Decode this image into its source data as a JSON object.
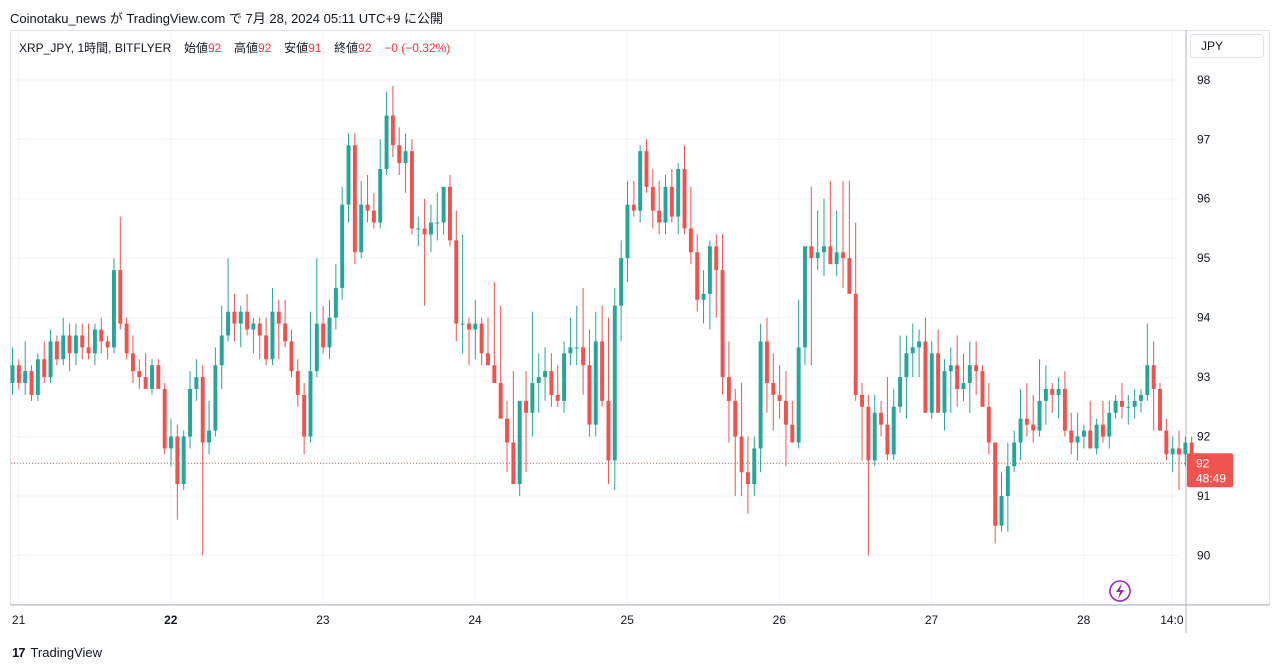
{
  "header": {
    "publish_info": "Coinotaku_news が TradingView.com で 7月 28, 2024 05:11 UTC+9 に公開"
  },
  "legend": {
    "symbol": "XRP_JPY, 1時間, BITFLYER",
    "open_label": "始値",
    "open_value": "92",
    "high_label": "高値",
    "high_value": "92",
    "low_label": "安値",
    "low_value": "91",
    "close_label": "終値",
    "close_value": "92",
    "change": "−0 (−0.32%)"
  },
  "currency_button": "JPY",
  "price_tag": {
    "price": "92",
    "countdown": "48:49"
  },
  "footer": {
    "brand": "TradingView",
    "logo": "17"
  },
  "colors": {
    "up": "#26a69a",
    "down": "#ef5350",
    "grid": "#f0f3fa",
    "price_line": "#ef5350",
    "badge": "#9c27b0"
  },
  "chart_data": {
    "type": "candlestick",
    "title": "XRP_JPY, 1時間, BITFLYER",
    "y_ticks": [
      "90",
      "91",
      "92",
      "93",
      "94",
      "95",
      "96",
      "97",
      "98"
    ],
    "ylim": [
      89.2,
      98.3
    ],
    "x_ticks": [
      {
        "label": "21",
        "day": 0
      },
      {
        "label": "22",
        "day": 1
      },
      {
        "label": "23",
        "day": 2
      },
      {
        "label": "24",
        "day": 3
      },
      {
        "label": "25",
        "day": 4
      },
      {
        "label": "26",
        "day": 5
      },
      {
        "label": "27",
        "day": 6
      },
      {
        "label": "28",
        "day": 7
      },
      {
        "label": "14:0",
        "day": 7.58
      }
    ],
    "x_range_days": [
      -0.05,
      7.62
    ],
    "last_price": 91.55,
    "grid": true,
    "series": [
      {
        "start_day": -0.04,
        "step_day": 0.041667,
        "points": [
          [
            92.9,
            93.5,
            92.7,
            93.2
          ],
          [
            93.2,
            93.3,
            92.8,
            92.9
          ],
          [
            92.9,
            93.6,
            92.7,
            93.1
          ],
          [
            93.1,
            93.2,
            92.6,
            92.7
          ],
          [
            92.7,
            93.4,
            92.6,
            93.3
          ],
          [
            93.3,
            93.6,
            92.9,
            93.0
          ],
          [
            93.0,
            93.8,
            92.9,
            93.6
          ],
          [
            93.6,
            93.7,
            93.2,
            93.3
          ],
          [
            93.3,
            94.0,
            93.2,
            93.7
          ],
          [
            93.7,
            93.9,
            93.1,
            93.4
          ],
          [
            93.4,
            93.9,
            93.2,
            93.7
          ],
          [
            93.7,
            93.9,
            93.3,
            93.5
          ],
          [
            93.5,
            93.9,
            93.3,
            93.4
          ],
          [
            93.4,
            93.9,
            93.2,
            93.8
          ],
          [
            93.8,
            94.0,
            93.4,
            93.6
          ],
          [
            93.6,
            93.7,
            93.3,
            93.5
          ],
          [
            93.5,
            95.0,
            93.4,
            94.8
          ],
          [
            94.8,
            95.7,
            93.8,
            93.9
          ],
          [
            93.9,
            94.0,
            93.3,
            93.4
          ],
          [
            93.4,
            93.7,
            92.9,
            93.1
          ],
          [
            93.1,
            93.3,
            92.8,
            93.0
          ],
          [
            93.0,
            93.4,
            92.8,
            92.8
          ],
          [
            92.8,
            93.3,
            92.7,
            93.2
          ],
          [
            93.2,
            93.3,
            92.8,
            92.8
          ],
          [
            92.8,
            92.9,
            91.7,
            91.8
          ],
          [
            91.8,
            92.3,
            91.5,
            92.0
          ],
          [
            92.0,
            92.2,
            90.6,
            91.2
          ],
          [
            91.2,
            92.1,
            91.1,
            92.0
          ],
          [
            92.0,
            93.1,
            91.8,
            92.8
          ],
          [
            92.8,
            93.3,
            92.6,
            93.0
          ],
          [
            93.0,
            93.2,
            90.0,
            91.9
          ],
          [
            91.9,
            92.6,
            91.7,
            92.1
          ],
          [
            92.1,
            93.5,
            92.0,
            93.2
          ],
          [
            93.2,
            94.2,
            92.8,
            93.7
          ],
          [
            93.7,
            95.0,
            93.6,
            94.1
          ],
          [
            94.1,
            94.4,
            93.6,
            93.9
          ],
          [
            93.9,
            94.2,
            93.5,
            94.1
          ],
          [
            94.1,
            94.4,
            93.7,
            93.8
          ],
          [
            93.8,
            94.0,
            93.4,
            93.9
          ],
          [
            93.9,
            94.0,
            93.3,
            93.7
          ],
          [
            93.7,
            94.0,
            93.2,
            93.3
          ],
          [
            93.3,
            94.5,
            93.2,
            94.1
          ],
          [
            94.1,
            94.3,
            93.3,
            93.9
          ],
          [
            93.9,
            94.3,
            93.5,
            93.6
          ],
          [
            93.6,
            93.8,
            93.0,
            93.1
          ],
          [
            93.1,
            93.3,
            92.5,
            92.7
          ],
          [
            92.7,
            92.9,
            91.7,
            92.0
          ],
          [
            92.0,
            94.1,
            91.9,
            93.1
          ],
          [
            93.1,
            95.0,
            93.0,
            93.9
          ],
          [
            93.9,
            94.2,
            93.4,
            93.5
          ],
          [
            93.5,
            94.3,
            93.3,
            94.0
          ],
          [
            94.0,
            94.9,
            93.8,
            94.5
          ],
          [
            94.5,
            96.2,
            94.3,
            95.9
          ],
          [
            95.9,
            97.1,
            95.6,
            96.9
          ],
          [
            96.9,
            97.1,
            94.9,
            95.1
          ],
          [
            95.1,
            96.3,
            95.0,
            95.9
          ],
          [
            95.9,
            96.4,
            95.6,
            95.8
          ],
          [
            95.8,
            96.1,
            95.5,
            95.6
          ],
          [
            95.6,
            97.0,
            95.5,
            96.5
          ],
          [
            96.5,
            97.8,
            96.4,
            97.4
          ],
          [
            97.4,
            97.9,
            96.7,
            96.9
          ],
          [
            96.9,
            97.2,
            96.4,
            96.6
          ],
          [
            96.6,
            97.1,
            96.1,
            96.8
          ],
          [
            96.8,
            97.0,
            95.4,
            95.5
          ],
          [
            95.5,
            95.7,
            95.2,
            95.5
          ],
          [
            95.5,
            96.0,
            94.2,
            95.4
          ],
          [
            95.4,
            95.9,
            95.1,
            95.6
          ],
          [
            95.6,
            96.1,
            95.3,
            95.6
          ],
          [
            95.6,
            96.2,
            95.4,
            96.2
          ],
          [
            96.2,
            96.4,
            95.2,
            95.3
          ],
          [
            95.3,
            95.8,
            93.6,
            93.9
          ],
          [
            93.9,
            95.4,
            93.4,
            93.9
          ],
          [
            93.9,
            94.0,
            93.2,
            93.8
          ],
          [
            93.8,
            94.3,
            93.3,
            93.9
          ],
          [
            93.9,
            94.0,
            93.2,
            93.4
          ],
          [
            93.4,
            94.0,
            93.3,
            93.2
          ],
          [
            93.2,
            94.6,
            93.0,
            92.9
          ],
          [
            92.9,
            94.2,
            92.3,
            92.3
          ],
          [
            92.3,
            92.6,
            91.4,
            91.9
          ],
          [
            91.9,
            93.1,
            91.4,
            91.2
          ],
          [
            91.2,
            92.6,
            91.0,
            92.6
          ],
          [
            92.6,
            93.1,
            91.4,
            92.4
          ],
          [
            92.4,
            94.1,
            92.0,
            92.9
          ],
          [
            92.9,
            93.4,
            92.4,
            93.0
          ],
          [
            93.0,
            93.5,
            92.6,
            93.1
          ],
          [
            93.1,
            93.4,
            92.5,
            92.7
          ],
          [
            92.7,
            93.2,
            92.5,
            92.6
          ],
          [
            92.6,
            93.6,
            92.4,
            93.4
          ],
          [
            93.4,
            94.0,
            93.2,
            93.5
          ],
          [
            93.5,
            94.2,
            93.2,
            93.5
          ],
          [
            93.5,
            94.5,
            92.7,
            93.2
          ],
          [
            93.2,
            93.8,
            92.0,
            92.2
          ],
          [
            92.2,
            94.1,
            92.0,
            93.6
          ],
          [
            93.6,
            94.2,
            92.5,
            92.6
          ],
          [
            92.6,
            94.0,
            91.2,
            91.6
          ],
          [
            91.6,
            94.5,
            91.1,
            94.2
          ],
          [
            94.2,
            95.3,
            93.6,
            95.0
          ],
          [
            95.0,
            96.3,
            94.6,
            95.9
          ],
          [
            95.9,
            96.3,
            95.7,
            95.8
          ],
          [
            95.8,
            96.9,
            95.6,
            96.8
          ],
          [
            96.8,
            97.0,
            96.1,
            96.2
          ],
          [
            96.2,
            96.5,
            95.5,
            95.8
          ],
          [
            95.8,
            96.3,
            95.4,
            95.6
          ],
          [
            95.6,
            96.4,
            95.4,
            96.2
          ],
          [
            96.2,
            96.5,
            95.6,
            95.7
          ],
          [
            95.7,
            96.6,
            95.4,
            96.5
          ],
          [
            96.5,
            96.9,
            95.4,
            95.5
          ],
          [
            95.5,
            96.2,
            94.9,
            95.1
          ],
          [
            95.1,
            95.4,
            94.1,
            94.3
          ],
          [
            94.3,
            94.8,
            93.9,
            94.4
          ],
          [
            94.4,
            95.3,
            93.8,
            95.2
          ],
          [
            95.2,
            95.4,
            94.0,
            94.8
          ],
          [
            94.8,
            95.4,
            92.7,
            93.0
          ],
          [
            93.0,
            93.6,
            91.9,
            92.6
          ],
          [
            92.6,
            92.8,
            91.0,
            92.0
          ],
          [
            92.0,
            92.9,
            91.0,
            91.4
          ],
          [
            91.4,
            92.0,
            90.7,
            91.2
          ],
          [
            91.2,
            92.0,
            91.0,
            91.8
          ],
          [
            91.8,
            93.9,
            91.4,
            93.6
          ],
          [
            93.6,
            94.0,
            92.4,
            92.9
          ],
          [
            92.9,
            93.4,
            92.1,
            92.7
          ],
          [
            92.7,
            93.2,
            92.3,
            92.6
          ],
          [
            92.6,
            93.1,
            91.5,
            92.2
          ],
          [
            92.2,
            92.6,
            91.9,
            91.9
          ],
          [
            91.9,
            94.3,
            91.8,
            93.5
          ],
          [
            93.5,
            94.6,
            93.2,
            95.2
          ],
          [
            95.2,
            96.2,
            93.2,
            95.0
          ],
          [
            95.0,
            95.8,
            94.8,
            95.1
          ],
          [
            95.1,
            96.0,
            94.7,
            95.2
          ],
          [
            95.2,
            96.3,
            94.9,
            94.9
          ],
          [
            94.9,
            95.8,
            94.7,
            95.1
          ],
          [
            95.1,
            96.3,
            94.5,
            95.0
          ],
          [
            95.0,
            96.3,
            94.6,
            94.4
          ],
          [
            94.4,
            95.6,
            92.6,
            92.7
          ],
          [
            92.7,
            92.9,
            91.6,
            92.5
          ],
          [
            92.5,
            92.7,
            90.0,
            91.6
          ],
          [
            91.6,
            92.7,
            91.5,
            92.4
          ],
          [
            92.4,
            92.6,
            92.0,
            92.2
          ],
          [
            92.2,
            93.0,
            91.6,
            91.7
          ],
          [
            91.7,
            92.8,
            91.6,
            92.5
          ],
          [
            92.5,
            93.7,
            92.4,
            93.0
          ],
          [
            93.0,
            93.7,
            92.3,
            93.4
          ],
          [
            93.4,
            93.9,
            93.0,
            93.5
          ],
          [
            93.5,
            93.8,
            93.0,
            93.6
          ],
          [
            93.6,
            94.0,
            92.4,
            92.4
          ],
          [
            92.4,
            93.6,
            92.3,
            93.4
          ],
          [
            93.4,
            93.8,
            92.8,
            92.4
          ],
          [
            92.4,
            93.3,
            92.1,
            93.1
          ],
          [
            93.1,
            93.5,
            92.4,
            93.2
          ],
          [
            93.2,
            93.7,
            92.5,
            92.8
          ],
          [
            92.8,
            93.4,
            92.6,
            92.9
          ],
          [
            92.9,
            93.6,
            92.4,
            93.2
          ],
          [
            93.2,
            93.6,
            92.7,
            93.1
          ],
          [
            93.1,
            93.2,
            92.5,
            92.5
          ],
          [
            92.5,
            92.9,
            91.7,
            91.9
          ],
          [
            91.9,
            91.9,
            90.2,
            90.5
          ],
          [
            90.5,
            91.4,
            90.4,
            91.0
          ],
          [
            91.0,
            91.9,
            90.4,
            91.5
          ],
          [
            91.5,
            92.1,
            91.4,
            91.9
          ],
          [
            91.9,
            92.8,
            91.6,
            92.3
          ],
          [
            92.3,
            92.9,
            92.0,
            92.2
          ],
          [
            92.2,
            92.7,
            91.9,
            92.1
          ],
          [
            92.1,
            93.3,
            92.0,
            92.6
          ],
          [
            92.6,
            93.2,
            92.2,
            92.8
          ],
          [
            92.8,
            92.9,
            92.4,
            92.7
          ],
          [
            92.7,
            93.0,
            92.3,
            92.8
          ],
          [
            92.8,
            93.1,
            92.0,
            92.1
          ],
          [
            92.1,
            92.4,
            91.7,
            91.9
          ],
          [
            91.9,
            92.4,
            91.6,
            92.0
          ],
          [
            92.0,
            92.2,
            91.8,
            92.1
          ],
          [
            92.1,
            92.6,
            91.8,
            91.8
          ],
          [
            91.8,
            92.3,
            91.7,
            92.2
          ],
          [
            92.2,
            92.6,
            91.9,
            92.0
          ],
          [
            92.0,
            92.6,
            91.8,
            92.4
          ],
          [
            92.4,
            92.7,
            92.3,
            92.6
          ],
          [
            92.6,
            92.9,
            92.3,
            92.5
          ],
          [
            92.5,
            92.7,
            92.2,
            92.5
          ],
          [
            92.5,
            92.8,
            92.3,
            92.6
          ],
          [
            92.6,
            92.8,
            92.4,
            92.7
          ],
          [
            92.7,
            93.9,
            92.6,
            93.2
          ],
          [
            93.2,
            93.6,
            92.1,
            92.8
          ],
          [
            92.8,
            92.9,
            92.1,
            92.1
          ],
          [
            92.1,
            92.3,
            91.6,
            91.7
          ],
          [
            91.7,
            92.0,
            91.4,
            91.8
          ],
          [
            91.8,
            92.1,
            91.1,
            91.7
          ],
          [
            91.7,
            92.0,
            91.5,
            91.9
          ],
          [
            91.9,
            92.0,
            91.5,
            91.55
          ]
        ]
      }
    ]
  }
}
